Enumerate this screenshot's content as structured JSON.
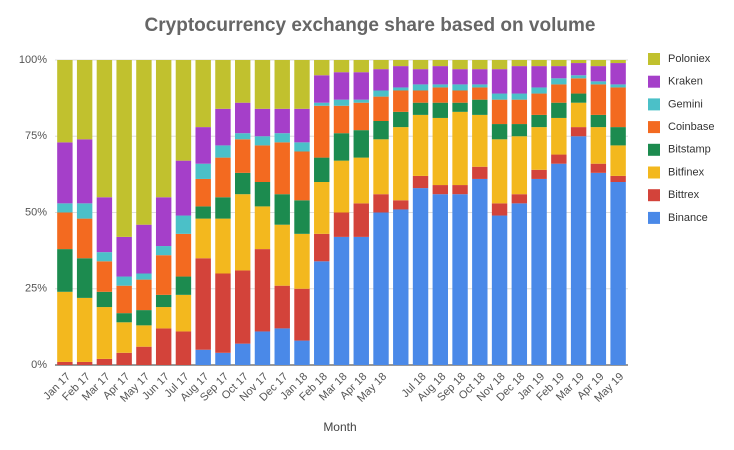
{
  "chart_data": {
    "type": "stacked_bar",
    "title": "Cryptocurrency exchange share based on volume",
    "x_label": "Month",
    "categories": [
      "Jan 17",
      "Feb 17",
      "Mar 17",
      "Apr 17",
      "May 17",
      "Jun 17",
      "Jul 17",
      "Aug 17",
      "Sep 17",
      "Oct 17",
      "Nov 17",
      "Dec 17",
      "Jan 18",
      "Feb 18",
      "Mar 18",
      "Apr 18",
      "May 18",
      null,
      "Jul 18",
      "Aug 18",
      "Sep 18",
      "Oct 18",
      "Nov 18",
      "Dec 18",
      "Jan 19",
      "Feb 19",
      "Mar 19",
      "Apr 19",
      "May 19"
    ],
    "series": [
      {
        "name": "Binance",
        "color": "#4a89e8",
        "values": [
          0,
          0,
          0,
          0,
          0,
          0,
          0,
          5,
          4,
          7,
          11,
          12,
          8,
          34,
          42,
          42,
          50,
          51,
          58,
          56,
          56,
          61,
          49,
          53,
          61,
          66,
          75,
          63,
          60
        ]
      },
      {
        "name": "Bittrex",
        "color": "#d3433a",
        "values": [
          1,
          1,
          2,
          4,
          6,
          12,
          11,
          30,
          26,
          24,
          27,
          14,
          17,
          9,
          8,
          11,
          6,
          3,
          4,
          3,
          3,
          4,
          4,
          3,
          3,
          3,
          3,
          3,
          2
        ]
      },
      {
        "name": "Bitfinex",
        "color": "#f3b81e",
        "values": [
          23,
          21,
          17,
          10,
          7,
          7,
          12,
          13,
          18,
          25,
          14,
          20,
          18,
          17,
          17,
          15,
          18,
          24,
          20,
          22,
          24,
          17,
          21,
          19,
          14,
          12,
          8,
          12,
          10
        ]
      },
      {
        "name": "Bitstamp",
        "color": "#1c8b4f",
        "values": [
          14,
          13,
          5,
          3,
          5,
          4,
          6,
          4,
          7,
          7,
          8,
          10,
          11,
          8,
          9,
          9,
          6,
          5,
          4,
          5,
          3,
          5,
          5,
          4,
          4,
          5,
          3,
          4,
          6
        ]
      },
      {
        "name": "Coinbase",
        "color": "#f36a20",
        "values": [
          12,
          13,
          10,
          9,
          10,
          13,
          14,
          9,
          13,
          11,
          12,
          17,
          16,
          17,
          9,
          9,
          8,
          7,
          4,
          5,
          4,
          4,
          8,
          8,
          7,
          6,
          5,
          10,
          13
        ]
      },
      {
        "name": "Gemini",
        "color": "#4bc0c8",
        "values": [
          3,
          5,
          3,
          3,
          2,
          3,
          6,
          5,
          4,
          2,
          3,
          3,
          3,
          1,
          2,
          1,
          2,
          1,
          2,
          1,
          2,
          1,
          2,
          2,
          2,
          2,
          1,
          1,
          1
        ]
      },
      {
        "name": "Kraken",
        "color": "#a53fc9",
        "values": [
          20,
          21,
          18,
          13,
          16,
          16,
          18,
          12,
          12,
          10,
          9,
          8,
          11,
          9,
          9,
          9,
          7,
          7,
          5,
          6,
          5,
          5,
          8,
          9,
          7,
          4,
          4,
          5,
          7
        ]
      },
      {
        "name": "Poloniex",
        "color": "#c1c12e",
        "values": [
          27,
          26,
          45,
          58,
          54,
          45,
          33,
          22,
          16,
          14,
          16,
          16,
          16,
          5,
          4,
          4,
          3,
          2,
          3,
          2,
          3,
          3,
          3,
          2,
          2,
          2,
          1,
          2,
          1
        ]
      }
    ],
    "ylim": [
      0,
      100
    ],
    "yticks": [
      {
        "value": 0,
        "label": "0%"
      },
      {
        "value": 25,
        "label": "25%"
      },
      {
        "value": 50,
        "label": "50%"
      },
      {
        "value": 75,
        "label": "75%"
      },
      {
        "value": 100,
        "label": "100%"
      }
    ],
    "grid": true,
    "legend": "right"
  }
}
